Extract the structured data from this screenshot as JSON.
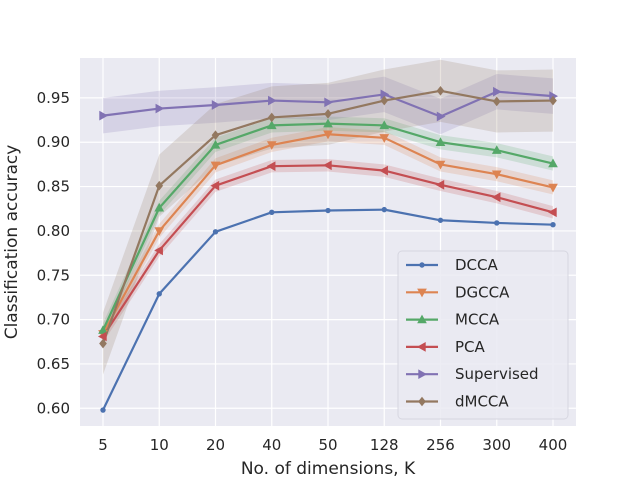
{
  "chart_data": {
    "type": "line",
    "title": "",
    "xlabel": "No. of dimensions, K",
    "ylabel": "Classification accuracy",
    "categories": [
      "5",
      "10",
      "20",
      "40",
      "50",
      "128",
      "256",
      "300",
      "400"
    ],
    "ylim": [
      0.58,
      0.995
    ],
    "yticks": [
      0.6,
      0.65,
      0.7,
      0.75,
      0.8,
      0.85,
      0.9,
      0.95
    ],
    "ytick_labels": [
      "0.60",
      "0.65",
      "0.70",
      "0.75",
      "0.80",
      "0.85",
      "0.90",
      "0.95"
    ],
    "grid": true,
    "legend_position": "lower-right",
    "series": [
      {
        "name": "DCCA",
        "color": "#4c72b0",
        "marker": "dot",
        "values": [
          0.598,
          0.729,
          0.799,
          0.821,
          0.823,
          0.824,
          0.812,
          0.809,
          0.807
        ],
        "band": 0.0
      },
      {
        "name": "DGCCA",
        "color": "#dd8452",
        "marker": "triangle-down",
        "values": [
          0.684,
          0.8,
          0.874,
          0.897,
          0.909,
          0.905,
          0.875,
          0.864,
          0.849
        ],
        "band": 0.008
      },
      {
        "name": "MCCA",
        "color": "#55a868",
        "marker": "triangle-up",
        "values": [
          0.688,
          0.826,
          0.897,
          0.919,
          0.921,
          0.919,
          0.9,
          0.891,
          0.876
        ],
        "band": 0.008
      },
      {
        "name": "PCA",
        "color": "#c44e52",
        "marker": "triangle-left",
        "values": [
          0.681,
          0.778,
          0.851,
          0.873,
          0.874,
          0.868,
          0.852,
          0.838,
          0.821
        ],
        "band": 0.007
      },
      {
        "name": "Supervised",
        "color": "#8172b3",
        "marker": "triangle-right",
        "values": [
          0.93,
          0.938,
          0.942,
          0.947,
          0.945,
          0.954,
          0.929,
          0.957,
          0.952
        ],
        "band": 0.02
      },
      {
        "name": "dMCCA",
        "color": "#937860",
        "marker": "diamond",
        "values": [
          0.673,
          0.851,
          0.908,
          0.928,
          0.932,
          0.947,
          0.958,
          0.946,
          0.947
        ],
        "band": 0.035
      }
    ]
  }
}
